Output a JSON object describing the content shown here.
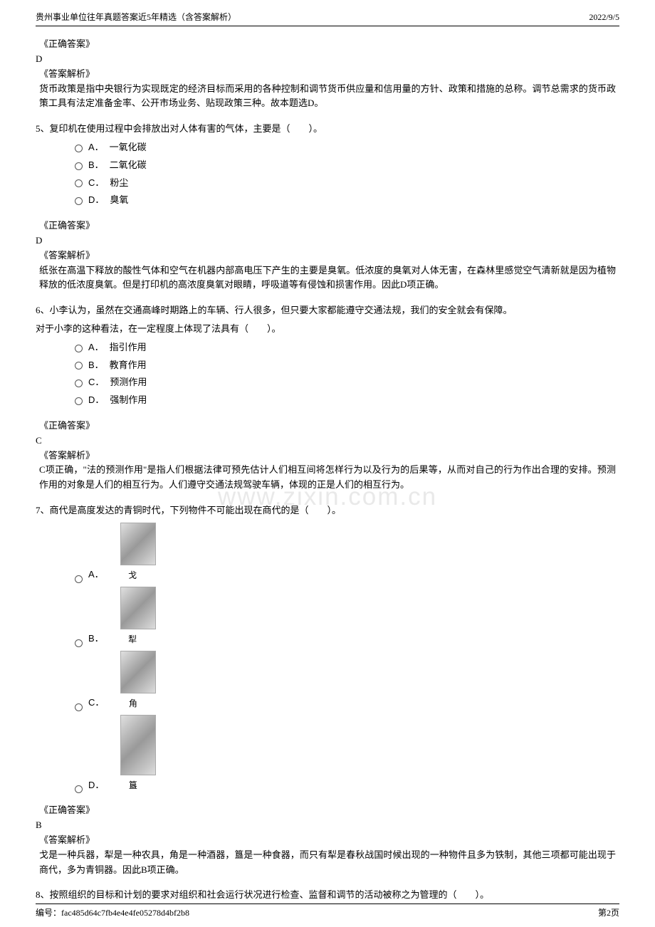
{
  "header": {
    "title": "贵州事业单位往年真题答案近5年精选（含答案解析）",
    "date": "2022/9/5"
  },
  "watermark": "www.zixin.com.cn",
  "block1": {
    "correct_label": "《正确答案》",
    "correct_value": "D",
    "analysis_label": "《答案解析》",
    "analysis_text": "货币政策是指中央银行为实现既定的经济目标而采用的各种控制和调节货币供应量和信用量的方针、政策和措施的总称。调节总需求的货币政策工具有法定准备金率、公开市场业务、贴现政策三种。故本题选D。"
  },
  "q5": {
    "text": "5、复印机在使用过程中会排放出对人体有害的气体，主要是（　　）。",
    "options": {
      "A": "一氧化碳",
      "B": "二氧化碳",
      "C": "粉尘",
      "D": "臭氧"
    },
    "correct_label": "《正确答案》",
    "correct_value": "D",
    "analysis_label": "《答案解析》",
    "analysis_text": "纸张在高温下释放的酸性气体和空气在机器内部高电压下产生的主要是臭氧。低浓度的臭氧对人体无害，在森林里感觉空气清新就是因为植物释放的低浓度臭氧。但是打印机的高浓度臭氧对眼睛，呼吸道等有侵蚀和损害作用。因此D项正确。"
  },
  "q6": {
    "text": "6、小李认为，虽然在交通高峰时期路上的车辆、行人很多，但只要大家都能遵守交通法规，我们的安全就会有保障。",
    "subtext": "对于小李的这种看法，在一定程度上体现了法具有（　　）。",
    "options": {
      "A": "指引作用",
      "B": "教育作用",
      "C": "预测作用",
      "D": "强制作用"
    },
    "correct_label": "《正确答案》",
    "correct_value": "C",
    "analysis_label": "《答案解析》",
    "analysis_text": "C项正确，\"法的预测作用\"是指人们根据法律可预先估计人们相互间将怎样行为以及行为的后果等，从而对自己的行为作出合理的安排。预测作用的对象是人们的相互行为。人们遵守交通法规驾驶车辆，体现的正是人们的相互行为。"
  },
  "q7": {
    "text": "7、商代是高度发达的青铜时代，下列物件不可能出现在商代的是（　　）。",
    "options": {
      "A": "戈",
      "B": "犁",
      "C": "角",
      "D": "簋"
    },
    "correct_label": "《正确答案》",
    "correct_value": "B",
    "analysis_label": "《答案解析》",
    "analysis_text": "戈是一种兵器，犁是一种农具，角是一种酒器，簋是一种食器，而只有犁是春秋战国时候出现的一种物件且多为铁制，其他三项都可能出现于商代，多为青铜器。因此B项正确。"
  },
  "q8": {
    "text": "8、按照组织的目标和计划的要求对组织和社会运行状况进行检查、监督和调节的活动被称之为管理的（　　）。"
  },
  "footer": {
    "left": "编号：fac485d64c7fb4e4e4fe05278d4bf2b8",
    "right": "第2页"
  }
}
